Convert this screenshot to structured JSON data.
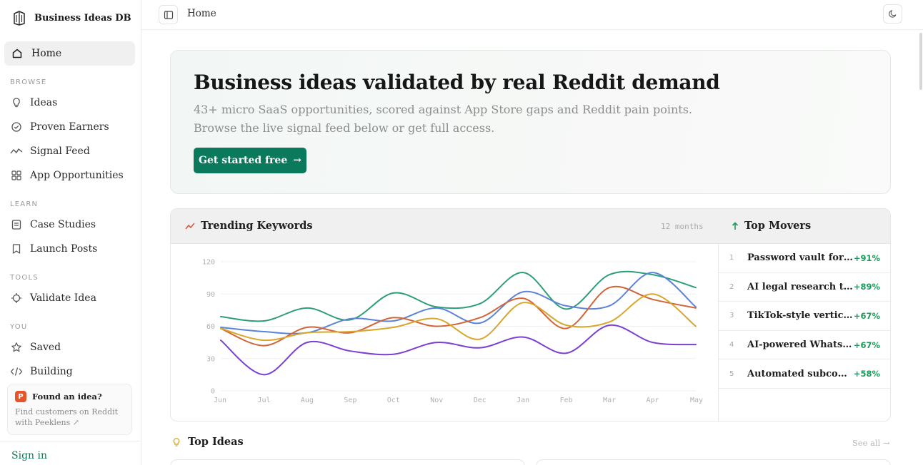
{
  "app": {
    "name": "Business Ideas DB"
  },
  "sidebar": {
    "home": {
      "label": "Home",
      "icon": "home-icon"
    },
    "sections": [
      {
        "label": "BROWSE",
        "items": [
          {
            "label": "Ideas",
            "icon": "lightbulb-icon"
          },
          {
            "label": "Proven Earners",
            "icon": "check-circle-icon"
          },
          {
            "label": "Signal Feed",
            "icon": "trend-line-icon"
          },
          {
            "label": "App Opportunities",
            "icon": "grid-icon"
          }
        ]
      },
      {
        "label": "LEARN",
        "items": [
          {
            "label": "Case Studies",
            "icon": "document-icon"
          },
          {
            "label": "Launch Posts",
            "icon": "bookmark-icon"
          }
        ]
      },
      {
        "label": "TOOLS",
        "items": [
          {
            "label": "Validate Idea",
            "icon": "crosshair-icon"
          }
        ]
      },
      {
        "label": "YOU",
        "items": [
          {
            "label": "Saved",
            "icon": "star-icon"
          },
          {
            "label": "Building",
            "icon": "code-icon"
          }
        ]
      }
    ],
    "promo": {
      "badge": "P",
      "title": "Found an idea?",
      "text": "Find customers on Reddit with Peeklens ↗"
    },
    "signin": "Sign in"
  },
  "topbar": {
    "breadcrumb": "Home"
  },
  "hero": {
    "title": "Business ideas validated by real Reddit demand",
    "subtitle": "43+ micro SaaS opportunities, scored against App Store gaps and Reddit pain points. Browse the live signal feed below or get full access.",
    "cta": "Get started free",
    "cta_arrow": "→"
  },
  "trending": {
    "title": "Trending Keywords",
    "range": "12 months",
    "colors": {
      "green": "#2e9e78",
      "blue": "#5b84d6",
      "orange": "#d2643a",
      "gold": "#d8a62b",
      "purple": "#7b3fd1"
    }
  },
  "chart_data": {
    "type": "line",
    "x": [
      "Jun",
      "Jul",
      "Aug",
      "Sep",
      "Oct",
      "Nov",
      "Dec",
      "Jan",
      "Feb",
      "Mar",
      "Apr",
      "May"
    ],
    "ylim": [
      0,
      120
    ],
    "yticks": [
      0,
      30,
      60,
      90,
      120
    ],
    "grid": true,
    "series": [
      {
        "color": "#2e9e78",
        "values": [
          69,
          65,
          77,
          66,
          91,
          78,
          81,
          110,
          76,
          108,
          108,
          96
        ]
      },
      {
        "color": "#5b84d6",
        "values": [
          59,
          55,
          54,
          67,
          65,
          77,
          63,
          92,
          79,
          79,
          110,
          78
        ]
      },
      {
        "color": "#d2643a",
        "values": [
          58,
          42,
          59,
          54,
          68,
          60,
          68,
          86,
          58,
          96,
          85,
          77
        ]
      },
      {
        "color": "#d8a62b",
        "values": [
          58,
          47,
          54,
          55,
          59,
          67,
          48,
          82,
          61,
          64,
          90,
          60
        ]
      },
      {
        "color": "#7b3fd1",
        "values": [
          47,
          15,
          45,
          37,
          34,
          45,
          40,
          50,
          35,
          61,
          45,
          43
        ]
      }
    ]
  },
  "top_movers": {
    "title": "Top Movers",
    "items": [
      {
        "rank": "1",
        "name": "Password vault for families",
        "change": "+91%"
      },
      {
        "rank": "2",
        "name": "AI legal research tool for small firms",
        "change": "+89%"
      },
      {
        "rank": "3",
        "name": "TikTok-style vertical video app",
        "change": "+67%"
      },
      {
        "rank": "4",
        "name": "AI-powered WhatsApp assistant",
        "change": "+67%"
      },
      {
        "rank": "5",
        "name": "Automated subcontractor management",
        "change": "+58%"
      }
    ]
  },
  "top_ideas": {
    "title": "Top Ideas",
    "see_all": "See all →"
  }
}
